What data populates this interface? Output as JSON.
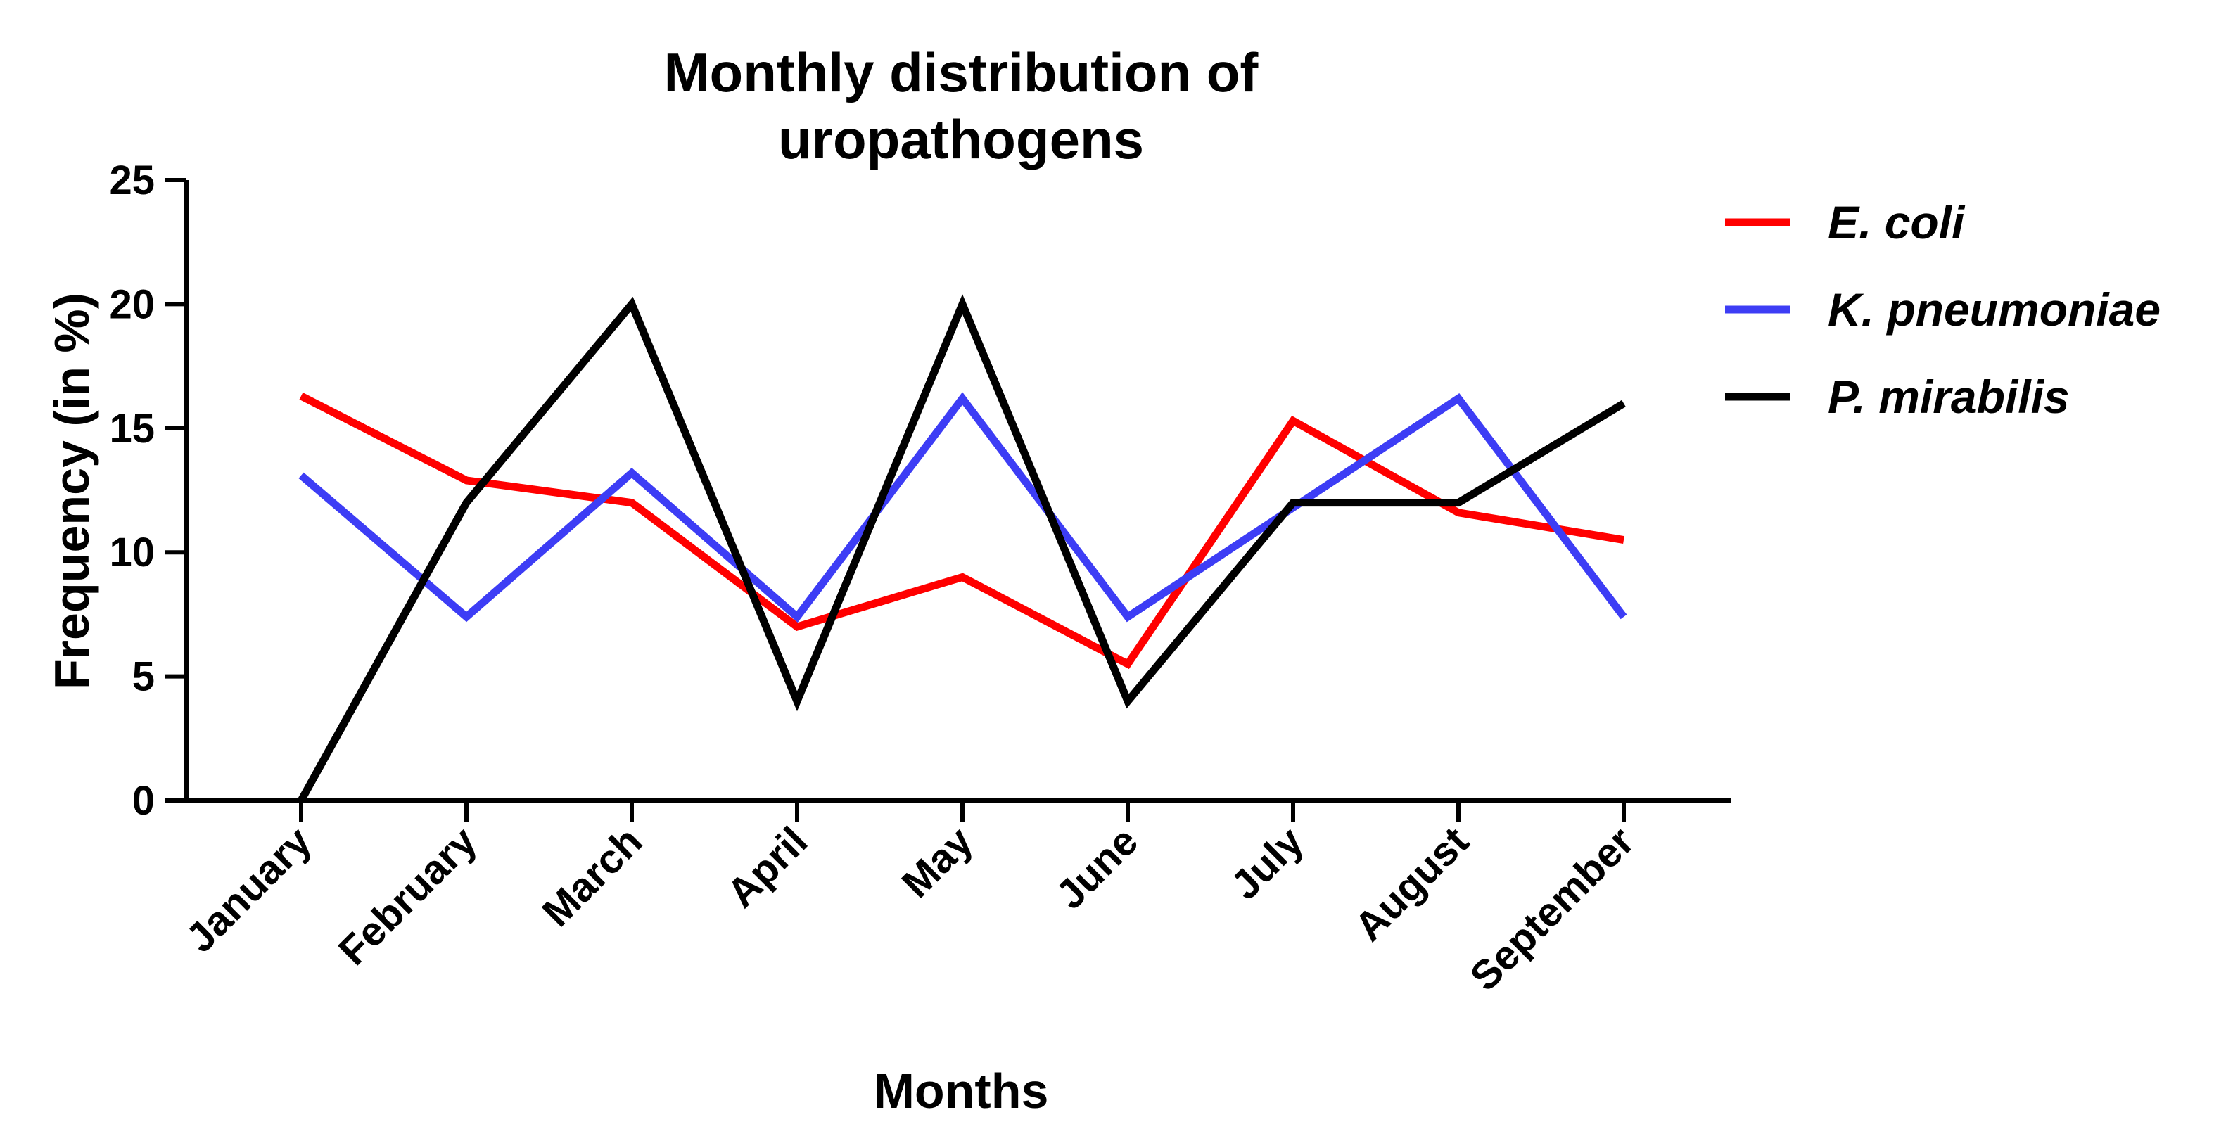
{
  "chart_data": {
    "type": "line",
    "title_lines": [
      "Monthly distribution of",
      "uropathogens"
    ],
    "xlabel": "Months",
    "ylabel": "Frequency (in %)",
    "categories": [
      "January",
      "February",
      "March",
      "April",
      "May",
      "June",
      "July",
      "August",
      "September"
    ],
    "ylim": [
      0,
      25
    ],
    "yticks": [
      "0",
      "5",
      "10",
      "15",
      "20",
      "25"
    ],
    "grid": false,
    "legend_position": "top-right",
    "series": [
      {
        "name": "E. coli",
        "color": "#ff0000",
        "values": [
          16.3,
          12.9,
          12.0,
          7.0,
          9.0,
          5.5,
          15.3,
          11.6,
          10.5
        ]
      },
      {
        "name": "K. pneumoniae",
        "color": "#3d3df5",
        "values": [
          13.1,
          7.4,
          13.2,
          7.4,
          16.2,
          7.4,
          11.8,
          16.2,
          7.4
        ]
      },
      {
        "name": "P. mirabilis",
        "color": "#000000",
        "values": [
          0,
          12.0,
          20.0,
          4.0,
          20.0,
          4.0,
          12.0,
          12.0,
          16.0
        ]
      }
    ]
  }
}
